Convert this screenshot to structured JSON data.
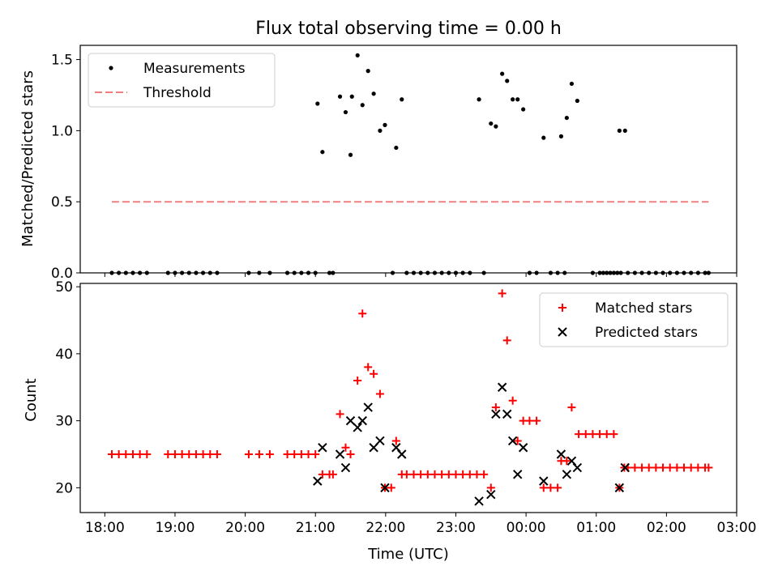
{
  "figure": {
    "title": "Flux total observing time = 0.00 h",
    "xlabel": "Time (UTC)",
    "xticks": [
      "18:00",
      "19:00",
      "20:00",
      "21:00",
      "22:00",
      "23:00",
      "00:00",
      "01:00",
      "02:00",
      "03:00"
    ]
  },
  "chart_data": [
    {
      "type": "scatter",
      "panel": "top",
      "ylabel": "Matched/Predicted stars",
      "ylim": [
        0,
        1.6
      ],
      "yticks": [
        "0.0",
        "0.5",
        "1.0",
        "1.5"
      ],
      "xlim_hours": [
        17.65,
        27.0
      ],
      "legend": {
        "placement": "upper-left",
        "entries": [
          "Measurements",
          "Threshold"
        ]
      },
      "series": [
        {
          "name": "Measurements",
          "kind": "points",
          "color": "#000000",
          "x_hours": [
            18.1,
            18.2,
            18.3,
            18.4,
            18.5,
            18.6,
            18.9,
            19.0,
            19.1,
            19.2,
            19.3,
            19.4,
            19.5,
            19.6,
            20.05,
            20.2,
            20.35,
            20.6,
            20.7,
            20.8,
            20.9,
            21.0,
            21.2,
            21.25,
            22.1,
            22.3,
            22.4,
            22.5,
            22.6,
            22.7,
            22.8,
            22.9,
            23.0,
            23.1,
            23.2,
            23.4,
            24.05,
            24.15,
            24.35,
            24.45,
            24.55,
            24.95,
            25.05,
            25.1,
            25.15,
            25.2,
            25.25,
            25.3,
            25.35,
            25.45,
            25.55,
            25.65,
            25.75,
            25.85,
            25.95,
            26.05,
            26.15,
            26.25,
            26.35,
            26.45,
            26.55,
            26.6,
            21.03,
            21.1,
            21.35,
            21.43,
            21.5,
            21.52,
            21.6,
            21.67,
            21.75,
            21.83,
            21.92,
            21.99,
            22.15,
            22.23,
            23.33,
            23.5,
            23.57,
            23.66,
            23.73,
            23.81,
            23.88,
            23.96,
            24.25,
            24.5,
            24.58,
            24.65,
            24.73,
            25.33,
            25.41
          ],
          "y": [
            0,
            0,
            0,
            0,
            0,
            0,
            0,
            0,
            0,
            0,
            0,
            0,
            0,
            0,
            0,
            0,
            0,
            0,
            0,
            0,
            0,
            0,
            0,
            0,
            0,
            0,
            0,
            0,
            0,
            0,
            0,
            0,
            0,
            0,
            0,
            0,
            0,
            0,
            0,
            0,
            0,
            0,
            0,
            0,
            0,
            0,
            0,
            0,
            0,
            0,
            0,
            0,
            0,
            0,
            0,
            0,
            0,
            0,
            0,
            0,
            0,
            0,
            1.19,
            0.85,
            1.24,
            1.13,
            0.83,
            1.24,
            1.53,
            1.18,
            1.42,
            1.26,
            1.0,
            1.04,
            0.88,
            1.22,
            1.22,
            1.05,
            1.03,
            1.4,
            1.35,
            1.22,
            1.22,
            1.15,
            0.95,
            0.96,
            1.09,
            1.33,
            1.21,
            1.0,
            1.0
          ]
        },
        {
          "name": "Threshold",
          "kind": "dashed-line",
          "color": "#f08080",
          "x_hours": [
            18.1,
            26.6
          ],
          "y": [
            0.5,
            0.5
          ]
        }
      ]
    },
    {
      "type": "scatter",
      "panel": "bottom",
      "ylabel": "Count",
      "ylim": [
        16.3,
        50.5
      ],
      "yticks": [
        "20",
        "30",
        "40",
        "50"
      ],
      "xlim_hours": [
        17.65,
        27.0
      ],
      "legend": {
        "placement": "upper-right",
        "entries": [
          "Matched stars",
          "Predicted stars"
        ]
      },
      "series": [
        {
          "name": "Matched stars",
          "marker": "plus",
          "color": "#ff0000",
          "x_hours": [
            18.1,
            18.2,
            18.3,
            18.4,
            18.5,
            18.6,
            18.9,
            19.0,
            19.1,
            19.2,
            19.3,
            19.4,
            19.5,
            19.6,
            20.05,
            20.2,
            20.35,
            20.6,
            20.7,
            20.8,
            20.9,
            21.0,
            21.1,
            21.2,
            21.25,
            21.35,
            21.43,
            21.5,
            21.6,
            21.67,
            21.75,
            21.83,
            21.92,
            21.99,
            22.08,
            22.15,
            22.23,
            22.3,
            22.4,
            22.5,
            22.6,
            22.7,
            22.8,
            22.9,
            23.0,
            23.1,
            23.2,
            23.3,
            23.4,
            23.5,
            23.57,
            23.66,
            23.73,
            23.81,
            23.88,
            23.96,
            24.05,
            24.15,
            24.25,
            24.35,
            24.45,
            24.5,
            24.58,
            24.65,
            24.75,
            24.85,
            24.95,
            25.05,
            25.15,
            25.25,
            25.33,
            25.4,
            25.45,
            25.55,
            25.65,
            25.75,
            25.85,
            25.95,
            26.05,
            26.15,
            26.25,
            26.35,
            26.45,
            26.55,
            26.6
          ],
          "y": [
            25,
            25,
            25,
            25,
            25,
            25,
            25,
            25,
            25,
            25,
            25,
            25,
            25,
            25,
            25,
            25,
            25,
            25,
            25,
            25,
            25,
            25,
            22,
            22,
            22,
            31,
            26,
            25,
            36,
            46,
            38,
            37,
            34,
            20,
            20,
            27,
            22,
            22,
            22,
            22,
            22,
            22,
            22,
            22,
            22,
            22,
            22,
            22,
            22,
            20,
            32,
            49,
            42,
            33,
            27,
            30,
            30,
            30,
            20,
            20,
            20,
            24,
            24,
            32,
            28,
            28,
            28,
            28,
            28,
            28,
            20,
            23,
            23,
            23,
            23,
            23,
            23,
            23,
            23,
            23,
            23,
            23,
            23,
            23,
            23
          ]
        },
        {
          "name": "Predicted stars",
          "marker": "x",
          "color": "#000000",
          "x_hours": [
            21.03,
            21.1,
            21.35,
            21.43,
            21.5,
            21.6,
            21.67,
            21.75,
            21.83,
            21.92,
            21.99,
            22.15,
            22.23,
            23.33,
            23.5,
            23.57,
            23.66,
            23.73,
            23.81,
            23.88,
            23.96,
            24.25,
            24.5,
            24.58,
            24.65,
            24.73,
            25.33,
            25.41
          ],
          "y": [
            21,
            26,
            25,
            23,
            30,
            29,
            30,
            32,
            26,
            27,
            20,
            26,
            25,
            18,
            19,
            31,
            35,
            31,
            27,
            22,
            26,
            21,
            25,
            22,
            24,
            23,
            20,
            23
          ]
        }
      ]
    }
  ]
}
